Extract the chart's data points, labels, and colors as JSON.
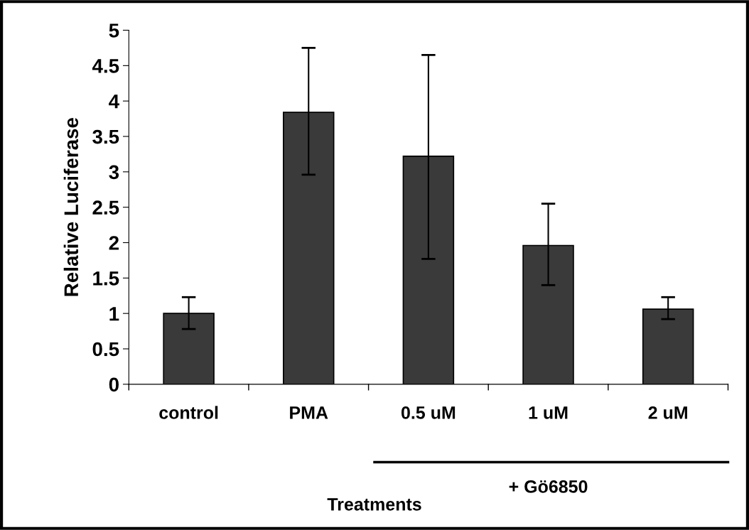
{
  "chart_data": {
    "type": "bar",
    "ylabel": "Relative Luciferase",
    "xlabel": "Treatments",
    "categories": [
      "control",
      "PMA",
      "0.5 uM",
      "1 uM",
      "2 uM"
    ],
    "values": [
      1.0,
      3.84,
      3.22,
      1.96,
      1.06
    ],
    "errors": [
      [
        0.78,
        1.23
      ],
      [
        2.96,
        4.75
      ],
      [
        1.77,
        4.65
      ],
      [
        1.4,
        2.55
      ],
      [
        0.92,
        1.23
      ]
    ],
    "color": "#3a3a3a",
    "ylim": [
      0,
      5
    ],
    "yticks": [
      0,
      0.5,
      1,
      1.5,
      2,
      2.5,
      3,
      3.5,
      4,
      4.5,
      5
    ],
    "annotations": [
      "+ Gö6850"
    ],
    "grid": false,
    "legend": false
  }
}
